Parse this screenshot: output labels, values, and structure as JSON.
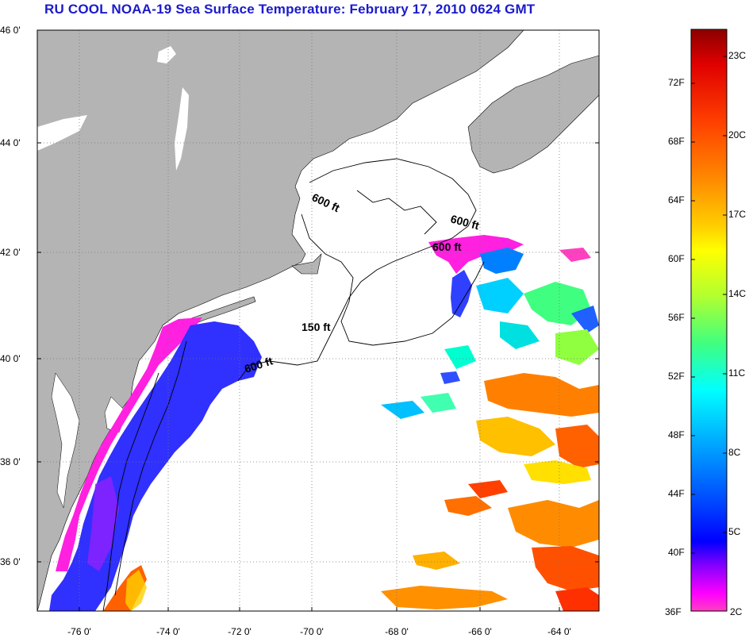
{
  "title": "RU COOL  NOAA-19  Sea Surface Temperature:  February 17, 2010 0624 GMT",
  "map": {
    "lat_labels": [
      "46 0'",
      "44 0'",
      "42 0'",
      "40 0'",
      "38 0'",
      "36 0'"
    ],
    "lon_labels": [
      "-76 0'",
      "-74 0'",
      "-72 0'",
      "-70 0'",
      "-68 0'",
      "-66 0'",
      "-64 0'"
    ],
    "depth_labels": [
      "600 ft",
      "600 ft",
      "600 ft",
      "150 ft",
      "600 ft"
    ],
    "colors": {
      "land": "#b4b4b4",
      "ocean": "#ffffff",
      "grid": "#777777"
    }
  },
  "colorbar": {
    "fahrenheit": [
      "72F",
      "68F",
      "64F",
      "60F",
      "56F",
      "52F",
      "48F",
      "44F",
      "40F",
      "36F"
    ],
    "celsius": [
      "23C",
      "20C",
      "17C",
      "14C",
      "11C",
      "8C",
      "5C",
      "2C"
    ],
    "gradient": [
      "#8b0000",
      "#e00000",
      "#ff4000",
      "#ff8c00",
      "#ffd000",
      "#ffff00",
      "#b0ff30",
      "#40ff80",
      "#00ffff",
      "#00a0ff",
      "#0040ff",
      "#0000ff",
      "#8000ff",
      "#ff00ff",
      "#ff40c0"
    ]
  }
}
